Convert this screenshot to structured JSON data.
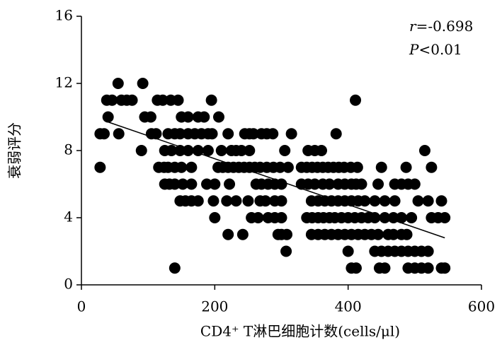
{
  "chart_data": {
    "type": "scatter",
    "xlabel": "CD4⁺ T淋巴细胞计数(cells/μl)",
    "ylabel": "衰弱评分",
    "annotations": [
      {
        "italic": "r",
        "text": "=-0.698"
      },
      {
        "italic": "P",
        "text": "<0.01"
      }
    ],
    "xlim": [
      0,
      600
    ],
    "xticks": [
      0,
      200,
      400,
      600
    ],
    "ylim": [
      0,
      16
    ],
    "yticks": [
      0,
      4,
      8,
      12,
      16
    ],
    "color": "#000000",
    "fit_line": {
      "x": [
        40,
        545
      ],
      "y": [
        9.7,
        2.8
      ]
    },
    "x": [
      55,
      92,
      38,
      46,
      60,
      68,
      76,
      114,
      122,
      134,
      145,
      195,
      411,
      40,
      95,
      104,
      150,
      160,
      175,
      184,
      206,
      28,
      34,
      56,
      105,
      112,
      130,
      140,
      148,
      160,
      170,
      180,
      190,
      196,
      220,
      245,
      252,
      258,
      270,
      278,
      287,
      315,
      382,
      90,
      125,
      135,
      148,
      160,
      175,
      190,
      210,
      225,
      232,
      240,
      252,
      305,
      340,
      350,
      360,
      515,
      28,
      116,
      124,
      130,
      140,
      150,
      165,
      205,
      212,
      220,
      228,
      236,
      244,
      252,
      260,
      268,
      278,
      288,
      298,
      310,
      330,
      338,
      346,
      354,
      362,
      370,
      378,
      386,
      394,
      404,
      414,
      450,
      487,
      525,
      125,
      132,
      140,
      152,
      165,
      188,
      200,
      222,
      262,
      270,
      280,
      290,
      300,
      330,
      340,
      350,
      362,
      372,
      385,
      395,
      405,
      412,
      420,
      445,
      470,
      480,
      490,
      500,
      148,
      156,
      165,
      175,
      198,
      218,
      232,
      250,
      268,
      276,
      290,
      300,
      345,
      355,
      365,
      375,
      385,
      395,
      405,
      415,
      425,
      440,
      455,
      470,
      505,
      520,
      540,
      200,
      255,
      265,
      280,
      290,
      300,
      338,
      346,
      355,
      363,
      372,
      380,
      390,
      400,
      410,
      420,
      430,
      440,
      455,
      468,
      480,
      495,
      525,
      535,
      545,
      220,
      242,
      295,
      300,
      308,
      345,
      355,
      365,
      375,
      385,
      395,
      405,
      415,
      425,
      435,
      445,
      460,
      468,
      480,
      488,
      307,
      400,
      440,
      450,
      460,
      470,
      480,
      490,
      500,
      510,
      520,
      140,
      405,
      412,
      447,
      455,
      490,
      500,
      510,
      520,
      540,
      545
    ],
    "y": [
      12,
      12,
      11,
      11,
      11,
      11,
      11,
      11,
      11,
      11,
      11,
      11,
      11,
      10,
      10,
      10,
      10,
      10,
      10,
      10,
      10,
      9,
      9,
      9,
      9,
      9,
      9,
      9,
      9,
      9,
      9,
      9,
      9,
      9,
      9,
      9,
      9,
      9,
      9,
      9,
      9,
      9,
      9,
      8,
      8,
      8,
      8,
      8,
      8,
      8,
      8,
      8,
      8,
      8,
      8,
      8,
      8,
      8,
      8,
      8,
      7,
      7,
      7,
      7,
      7,
      7,
      7,
      7,
      7,
      7,
      7,
      7,
      7,
      7,
      7,
      7,
      7,
      7,
      7,
      7,
      7,
      7,
      7,
      7,
      7,
      7,
      7,
      7,
      7,
      7,
      7,
      7,
      7,
      7,
      6,
      6,
      6,
      6,
      6,
      6,
      6,
      6,
      6,
      6,
      6,
      6,
      6,
      6,
      6,
      6,
      6,
      6,
      6,
      6,
      6,
      6,
      6,
      6,
      6,
      6,
      6,
      6,
      5,
      5,
      5,
      5,
      5,
      5,
      5,
      5,
      5,
      5,
      5,
      5,
      5,
      5,
      5,
      5,
      5,
      5,
      5,
      5,
      5,
      5,
      5,
      5,
      5,
      5,
      5,
      4,
      4,
      4,
      4,
      4,
      4,
      4,
      4,
      4,
      4,
      4,
      4,
      4,
      4,
      4,
      4,
      4,
      4,
      4,
      4,
      4,
      4,
      4,
      4,
      4,
      3,
      3,
      3,
      3,
      3,
      3,
      3,
      3,
      3,
      3,
      3,
      3,
      3,
      3,
      3,
      3,
      3,
      3,
      3,
      3,
      2,
      2,
      2,
      2,
      2,
      2,
      2,
      2,
      2,
      2,
      2,
      1,
      1,
      1,
      1,
      1,
      1,
      1,
      1,
      1,
      1,
      1
    ]
  }
}
